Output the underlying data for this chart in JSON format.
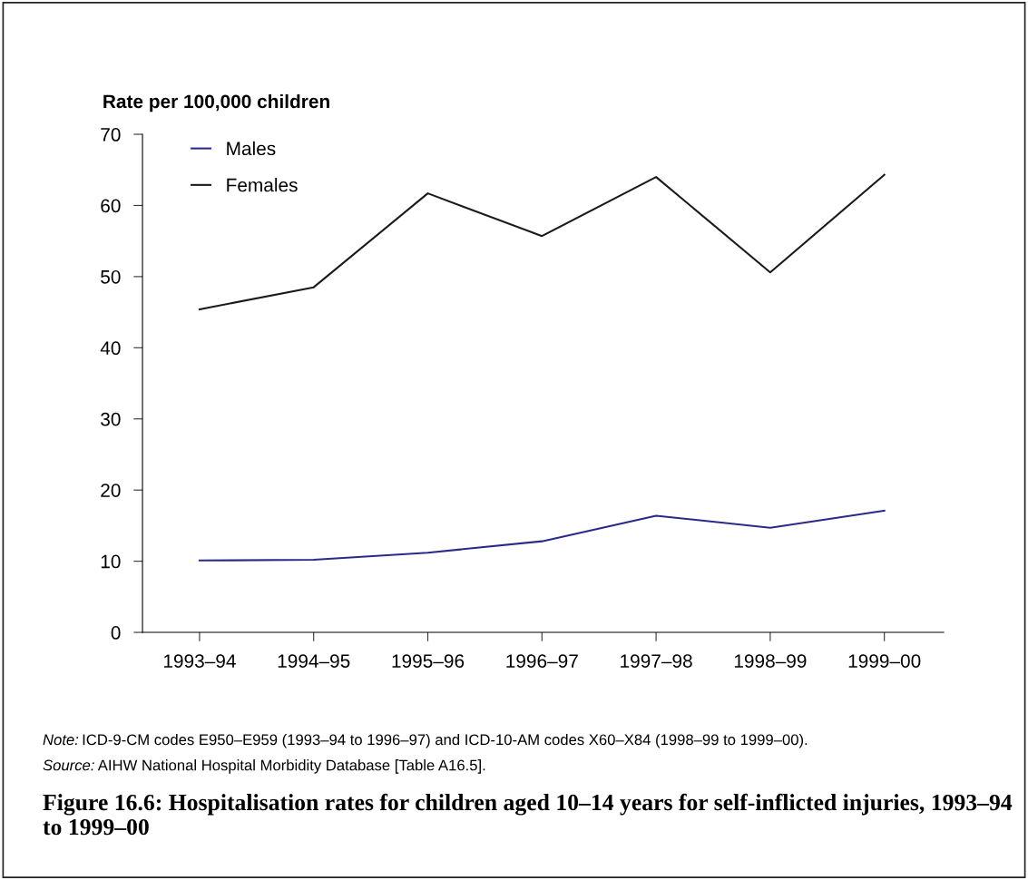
{
  "chart_data": {
    "type": "line",
    "title": "Figure 16.6: Hospitalisation rates for children aged 10–14 years for self-inflicted injuries, 1993–94 to 1999–00",
    "ylabel": "Rate per 100,000 children",
    "categories": [
      "1993–94",
      "1994–95",
      "1995–96",
      "1996–97",
      "1997–98",
      "1998–99",
      "1999–00"
    ],
    "series": [
      {
        "name": "Males",
        "color": "#2b2a8a",
        "values": [
          10.1,
          10.2,
          11.2,
          12.8,
          16.4,
          14.7,
          17.1
        ]
      },
      {
        "name": "Females",
        "color": "#1a1a1a",
        "values": [
          45.4,
          48.5,
          61.7,
          55.7,
          64.0,
          50.6,
          64.3
        ]
      }
    ],
    "ylim": [
      0,
      70
    ],
    "yticks": [
      0,
      10,
      20,
      30,
      40,
      50,
      60,
      70
    ],
    "grid": false,
    "legend": "top left",
    "marker": "none",
    "line_style": "solid",
    "annotations": [
      "Note: ICD-9-CM codes E950–E959 (1993–94 to 1996–97) and ICD-10-AM codes X60–X84 (1998–99 to 1999–00).",
      "Source: AIHW National Hospital Morbidity Database [Table A16.5]."
    ]
  }
}
